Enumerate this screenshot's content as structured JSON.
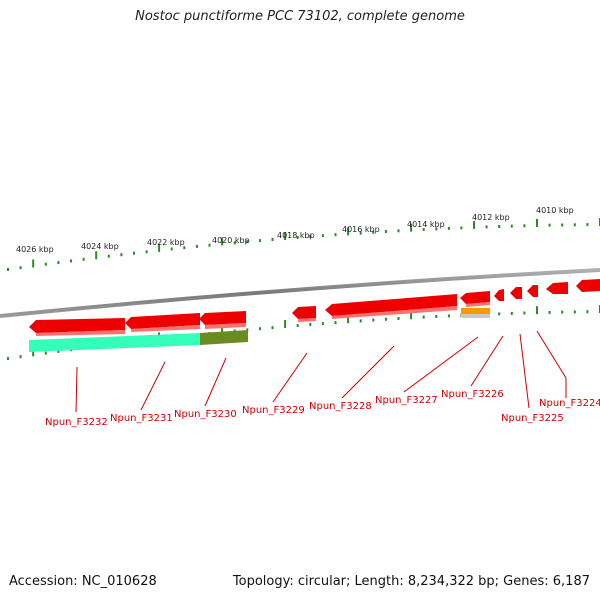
{
  "title": "Nostoc punctiforme PCC 73102, complete genome",
  "footer": {
    "accession": "Accession: NC_010628",
    "summary": "Topology: circular; Length: 8,234,322 bp; Genes: 6,187"
  },
  "scale_labels": [
    "4026 kbp",
    "4024 kbp",
    "4022 kbp",
    "4020 kbp",
    "4018 kbp",
    "4016 kbp",
    "4014 kbp",
    "4012 kbp",
    "4010 kbp"
  ],
  "gene_labels": [
    "Npun_F3232",
    "Npun_F3231",
    "Npun_F3230",
    "Npun_F3229",
    "Npun_F3228",
    "Npun_F3227",
    "Npun_F3226",
    "Npun_F3225",
    "Npun_F3224"
  ],
  "colors": {
    "gene": "#ee0000",
    "gene_top": "#ff3030",
    "tick": "#2a8a2a",
    "backbone": "#8a8a8a",
    "label": "#cc0000",
    "orange_feature": "#ff9900",
    "teal_feature": "#33ffbb",
    "olive_feature": "#6b8a22"
  }
}
